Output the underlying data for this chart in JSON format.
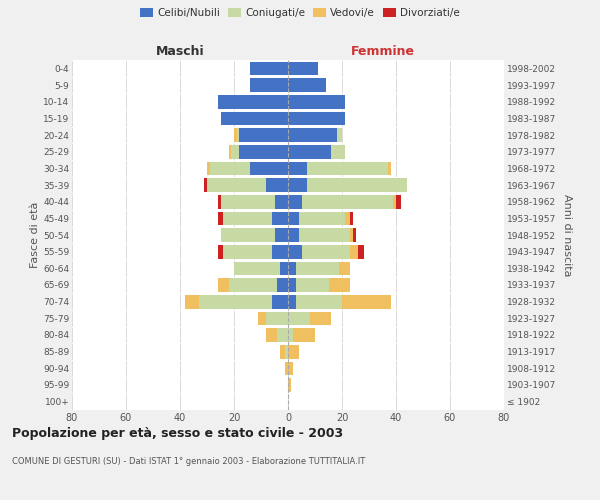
{
  "age_groups": [
    "100+",
    "95-99",
    "90-94",
    "85-89",
    "80-84",
    "75-79",
    "70-74",
    "65-69",
    "60-64",
    "55-59",
    "50-54",
    "45-49",
    "40-44",
    "35-39",
    "30-34",
    "25-29",
    "20-24",
    "15-19",
    "10-14",
    "5-9",
    "0-4"
  ],
  "year_labels": [
    "≤ 1902",
    "1903-1907",
    "1908-1912",
    "1913-1917",
    "1918-1922",
    "1923-1927",
    "1928-1932",
    "1933-1937",
    "1938-1942",
    "1943-1947",
    "1948-1952",
    "1953-1957",
    "1958-1962",
    "1963-1967",
    "1968-1972",
    "1973-1977",
    "1978-1982",
    "1983-1987",
    "1988-1992",
    "1993-1997",
    "1998-2002"
  ],
  "male": {
    "celibi": [
      0,
      0,
      0,
      0,
      0,
      0,
      6,
      4,
      3,
      6,
      5,
      6,
      5,
      8,
      14,
      18,
      18,
      25,
      26,
      14,
      14
    ],
    "coniugati": [
      0,
      0,
      0,
      1,
      4,
      8,
      27,
      18,
      17,
      18,
      20,
      18,
      20,
      22,
      15,
      3,
      1,
      0,
      0,
      0,
      0
    ],
    "vedovi": [
      0,
      0,
      1,
      2,
      4,
      3,
      5,
      4,
      0,
      0,
      0,
      0,
      0,
      0,
      1,
      1,
      1,
      0,
      0,
      0,
      0
    ],
    "divorziati": [
      0,
      0,
      0,
      0,
      0,
      0,
      0,
      0,
      0,
      2,
      0,
      2,
      1,
      1,
      0,
      0,
      0,
      0,
      0,
      0,
      0
    ]
  },
  "female": {
    "nubili": [
      0,
      0,
      0,
      0,
      0,
      0,
      3,
      3,
      3,
      5,
      4,
      4,
      5,
      7,
      7,
      16,
      18,
      21,
      21,
      14,
      11
    ],
    "coniugate": [
      0,
      0,
      0,
      0,
      2,
      8,
      17,
      12,
      16,
      18,
      19,
      17,
      34,
      37,
      30,
      5,
      2,
      0,
      0,
      0,
      0
    ],
    "vedove": [
      0,
      1,
      2,
      4,
      8,
      8,
      18,
      8,
      4,
      3,
      1,
      2,
      1,
      0,
      1,
      0,
      0,
      0,
      0,
      0,
      0
    ],
    "divorziate": [
      0,
      0,
      0,
      0,
      0,
      0,
      0,
      0,
      0,
      2,
      1,
      1,
      2,
      0,
      0,
      0,
      0,
      0,
      0,
      0,
      0
    ]
  },
  "colors": {
    "celibi": "#4472c4",
    "coniugati": "#c8daa4",
    "vedovi": "#f0c060",
    "divorziati": "#cc2222"
  },
  "xlim": 80,
  "title": "Popolazione per età, sesso e stato civile - 2003",
  "subtitle": "COMUNE DI GESTURI (SU) - Dati ISTAT 1° gennaio 2003 - Elaborazione TUTTITALIA.IT",
  "ylabel_left": "Fasce di età",
  "ylabel_right": "Anni di nascita",
  "xlabel_left": "Maschi",
  "xlabel_right": "Femmine",
  "bg_color": "#f0f0f0",
  "plot_bg_color": "#ffffff"
}
